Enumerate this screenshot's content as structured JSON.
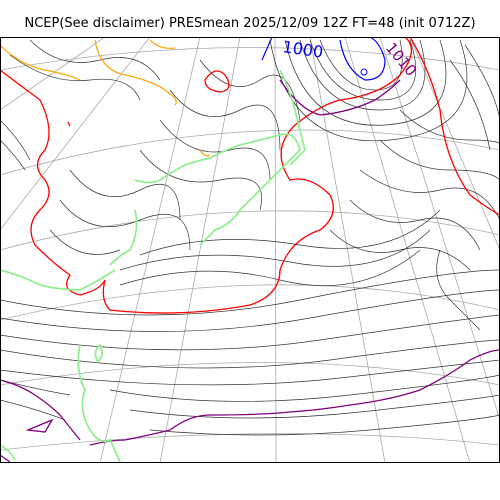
{
  "title": "NCEP(See disclaimer) PRESmean 2025/12/09 12Z FT=48 (init 0712Z)",
  "isobar_labels": [
    {
      "text": "1000",
      "color": "#0000ff"
    },
    {
      "text": "1010",
      "color": "#800080"
    }
  ],
  "colors": {
    "isobar": "#333333",
    "contour_1020": "#ff0000",
    "contour_low": "#0000ff",
    "contour_1010": "#800080",
    "contour_orange": "#ffa500",
    "coastline": "#90ee90",
    "graticule": "#aaaaaa"
  }
}
